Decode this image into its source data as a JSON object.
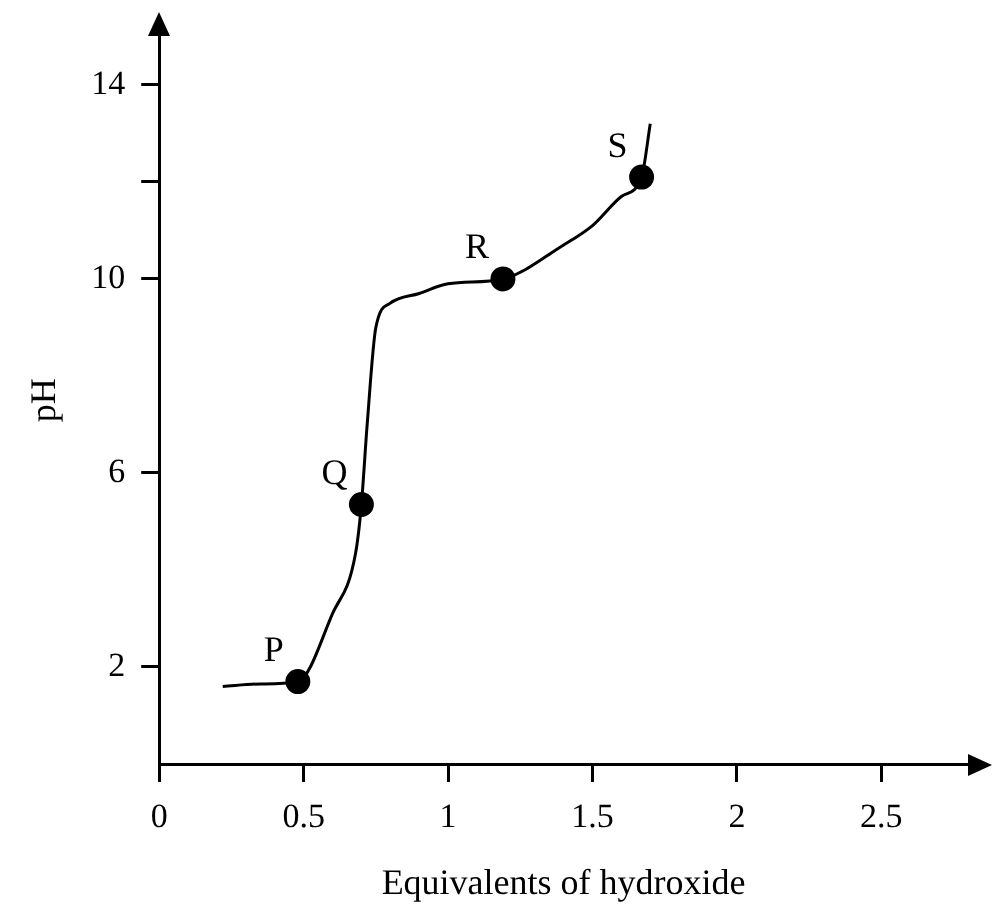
{
  "chart_data": {
    "type": "line",
    "xlabel": "Equivalents of hydroxide",
    "ylabel": "pH",
    "xlim": [
      0,
      2.8
    ],
    "ylim": [
      0,
      15
    ],
    "xticks": [
      0,
      0.5,
      1,
      1.5,
      2,
      2.5
    ],
    "yticks": [
      2,
      6,
      10,
      {
        "value": 12,
        "label": null
      },
      14
    ],
    "grid": false,
    "legend": false,
    "series": [
      {
        "color": "#000000",
        "marker": "none",
        "x": [
          0.22,
          0.35,
          0.48,
          0.6,
          0.68,
          0.7,
          0.72,
          0.75,
          0.8,
          0.9,
          1.0,
          1.19,
          1.4,
          1.5,
          1.6,
          1.67,
          1.7
        ],
        "values": [
          1.6,
          1.65,
          1.7,
          3.1,
          4.35,
          5.35,
          7.0,
          9.0,
          9.5,
          9.7,
          9.9,
          10,
          10.7,
          11.1,
          11.7,
          12.1,
          13.2
        ]
      },
      {
        "type": "scatter",
        "color": "#000000",
        "marker": "circle",
        "x": [
          0.48,
          0.7,
          1.19,
          1.67
        ],
        "values": [
          1.7,
          5.35,
          10,
          12.1
        ]
      }
    ],
    "annotations": [
      {
        "text": "P",
        "x": 0.48,
        "y": 1.7
      },
      {
        "text": "Q",
        "x": 0.7,
        "y": 5.35
      },
      {
        "text": "R",
        "x": 1.19,
        "y": 10
      },
      {
        "text": "S",
        "x": 1.67,
        "y": 12.1
      }
    ]
  }
}
